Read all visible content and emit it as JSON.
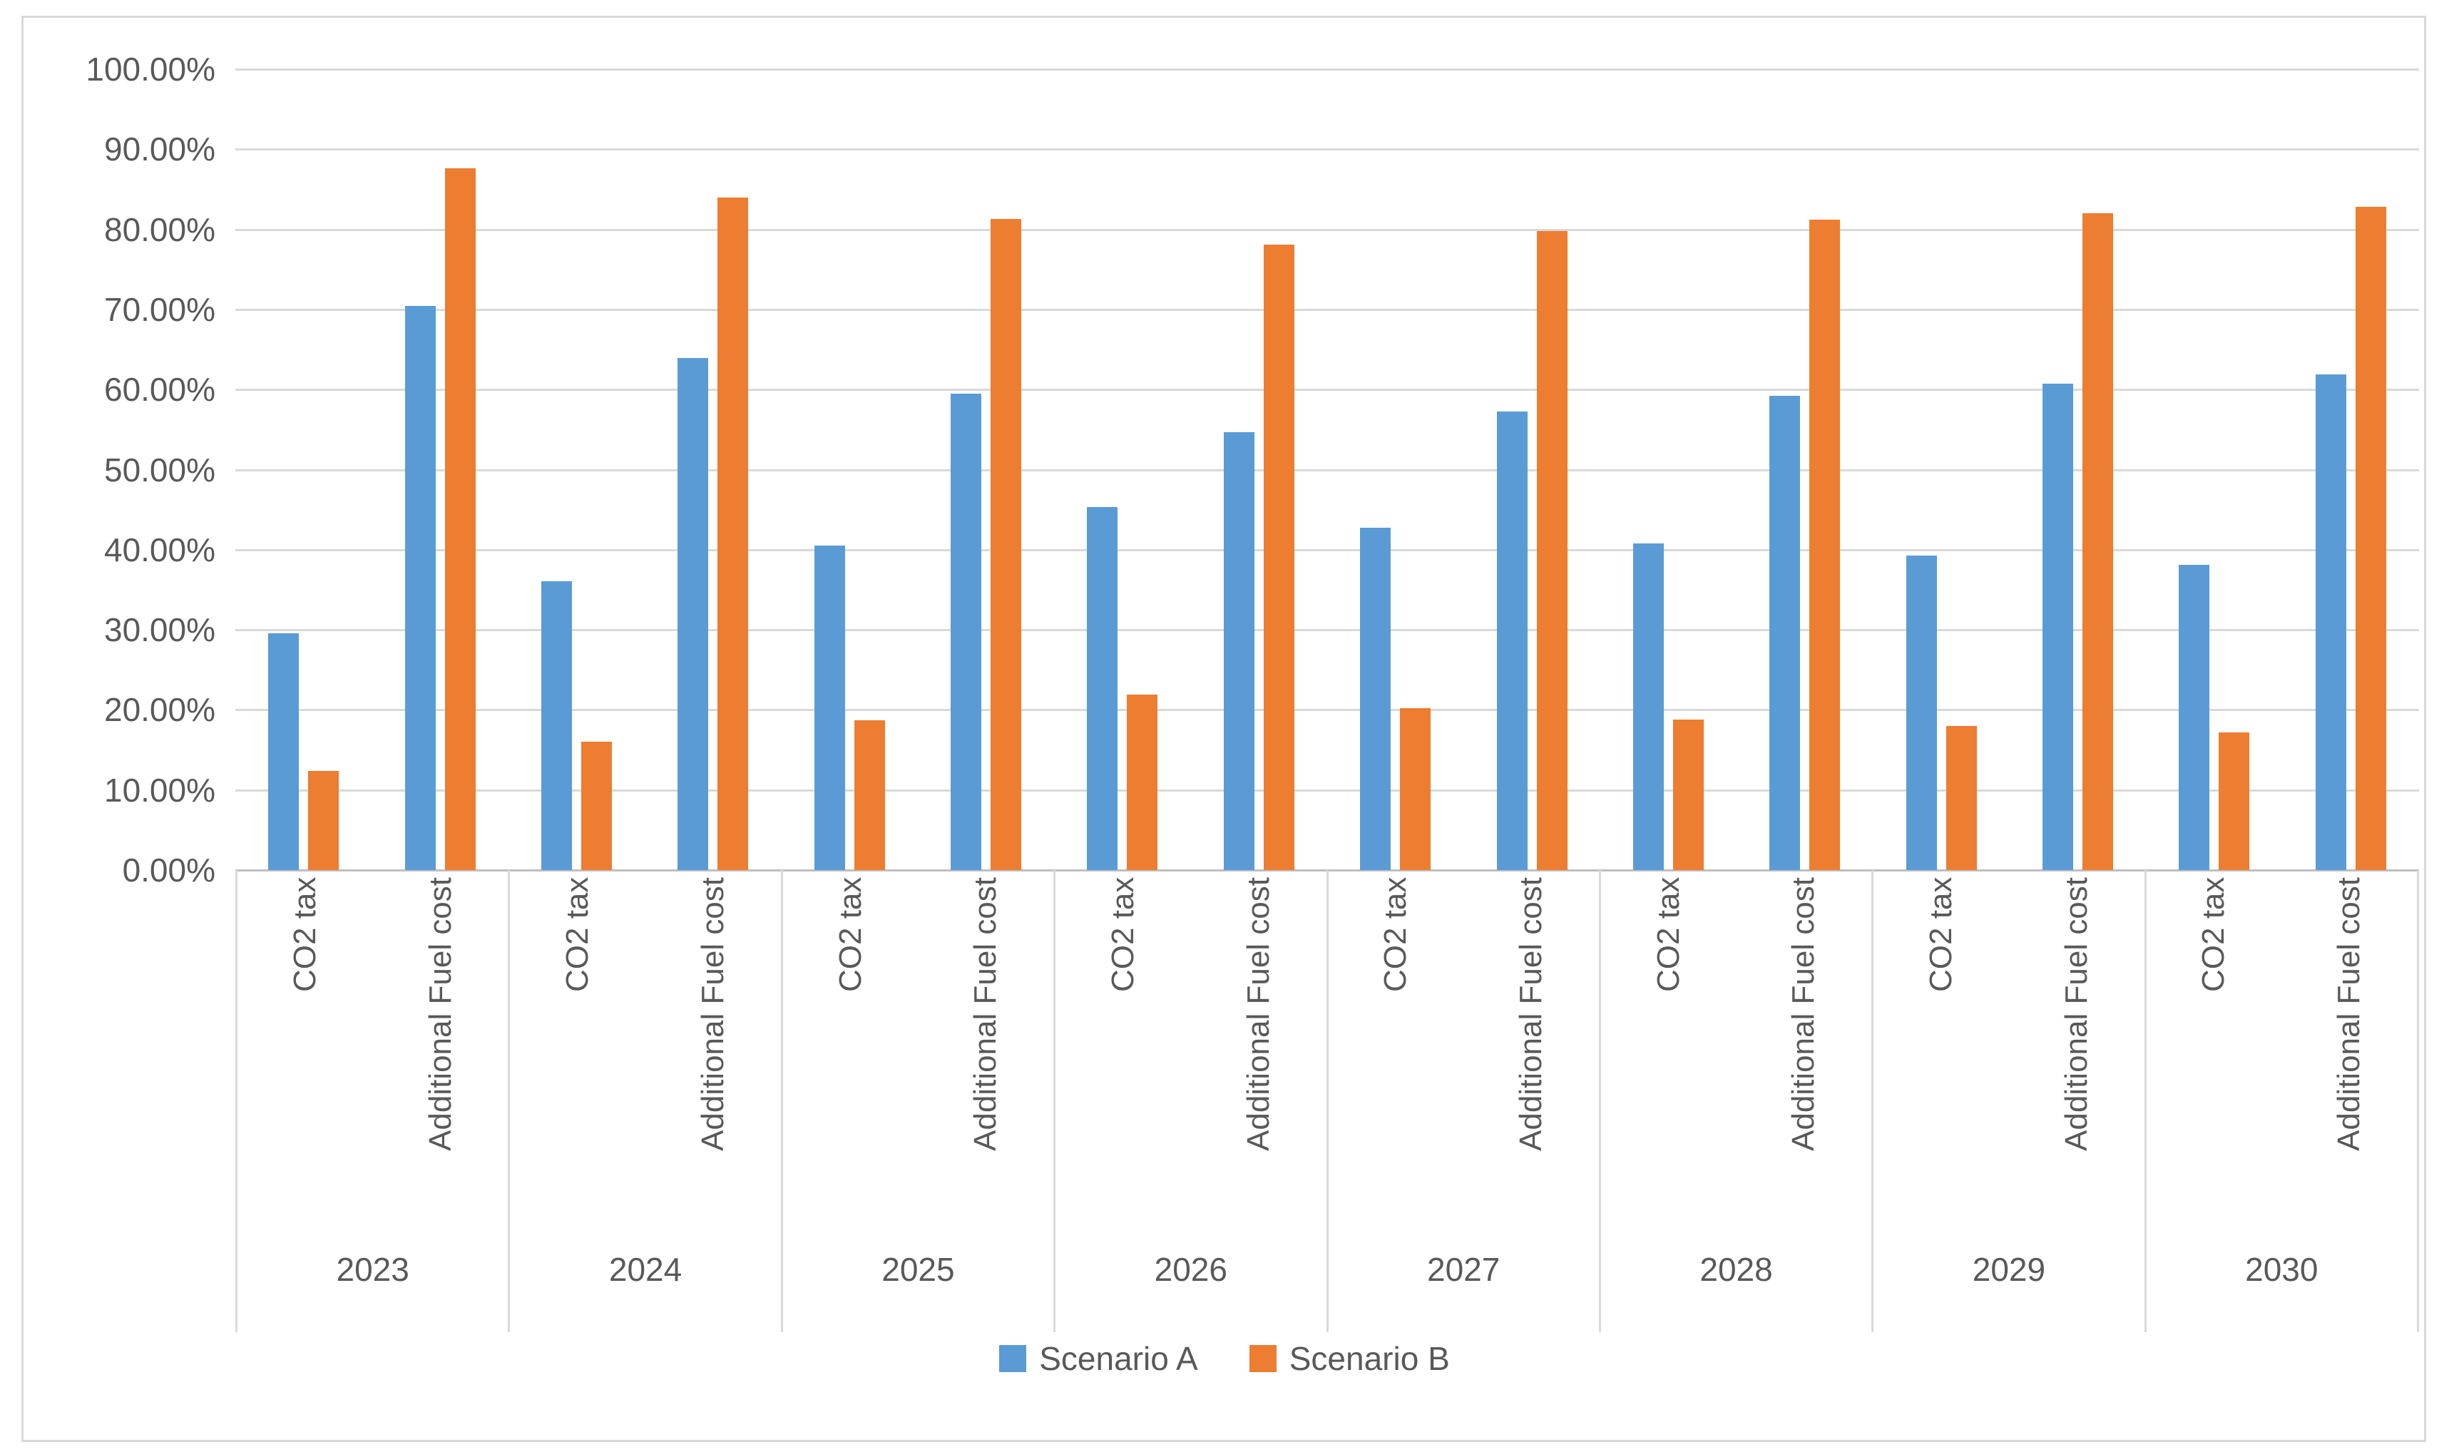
{
  "chart_data": {
    "type": "bar",
    "title": "",
    "grid": true,
    "legend_position": "bottom",
    "y_axis": {
      "min": 0,
      "max": 100,
      "step": 10,
      "unit": "%",
      "tick_labels": [
        "100.00%",
        "90.00%",
        "80.00%",
        "70.00%",
        "60.00%",
        "50.00%",
        "40.00%",
        "30.00%",
        "20.00%",
        "10.00%",
        "0.00%"
      ]
    },
    "category_labels": [
      "CO2 tax",
      "Additional Fuel cost"
    ],
    "series": [
      {
        "name": "Scenario A",
        "color": "#5B9BD5"
      },
      {
        "name": "Scenario B",
        "color": "#ED7D31"
      }
    ],
    "groups": [
      {
        "year": "2023",
        "bars": [
          {
            "category": "CO2 tax",
            "values": [
              29.6,
              12.4
            ]
          },
          {
            "category": "Additional Fuel cost",
            "values": [
              70.4,
              87.6
            ]
          }
        ]
      },
      {
        "year": "2024",
        "bars": [
          {
            "category": "CO2 tax",
            "values": [
              36.1,
              16.0
            ]
          },
          {
            "category": "Additional Fuel cost",
            "values": [
              63.9,
              84.0
            ]
          }
        ]
      },
      {
        "year": "2025",
        "bars": [
          {
            "category": "CO2 tax",
            "values": [
              40.5,
              18.7
            ]
          },
          {
            "category": "Additional Fuel cost",
            "values": [
              59.5,
              81.3
            ]
          }
        ]
      },
      {
        "year": "2026",
        "bars": [
          {
            "category": "CO2 tax",
            "values": [
              45.3,
              21.9
            ]
          },
          {
            "category": "Additional Fuel cost",
            "values": [
              54.7,
              78.1
            ]
          }
        ]
      },
      {
        "year": "2027",
        "bars": [
          {
            "category": "CO2 tax",
            "values": [
              42.7,
              20.2
            ]
          },
          {
            "category": "Additional Fuel cost",
            "values": [
              57.3,
              79.8
            ]
          }
        ]
      },
      {
        "year": "2028",
        "bars": [
          {
            "category": "CO2 tax",
            "values": [
              40.8,
              18.8
            ]
          },
          {
            "category": "Additional Fuel cost",
            "values": [
              59.2,
              81.2
            ]
          }
        ]
      },
      {
        "year": "2029",
        "bars": [
          {
            "category": "CO2 tax",
            "values": [
              39.3,
              18.0
            ]
          },
          {
            "category": "Additional Fuel cost",
            "values": [
              60.7,
              82.0
            ]
          }
        ]
      },
      {
        "year": "2030",
        "bars": [
          {
            "category": "CO2 tax",
            "values": [
              38.1,
              17.2
            ]
          },
          {
            "category": "Additional Fuel cost",
            "values": [
              61.9,
              82.8
            ]
          }
        ]
      }
    ],
    "colors": {
      "gridline": "#d9d9d9",
      "axis_text": "#595959",
      "frame_border": "#d9d9d9"
    }
  }
}
